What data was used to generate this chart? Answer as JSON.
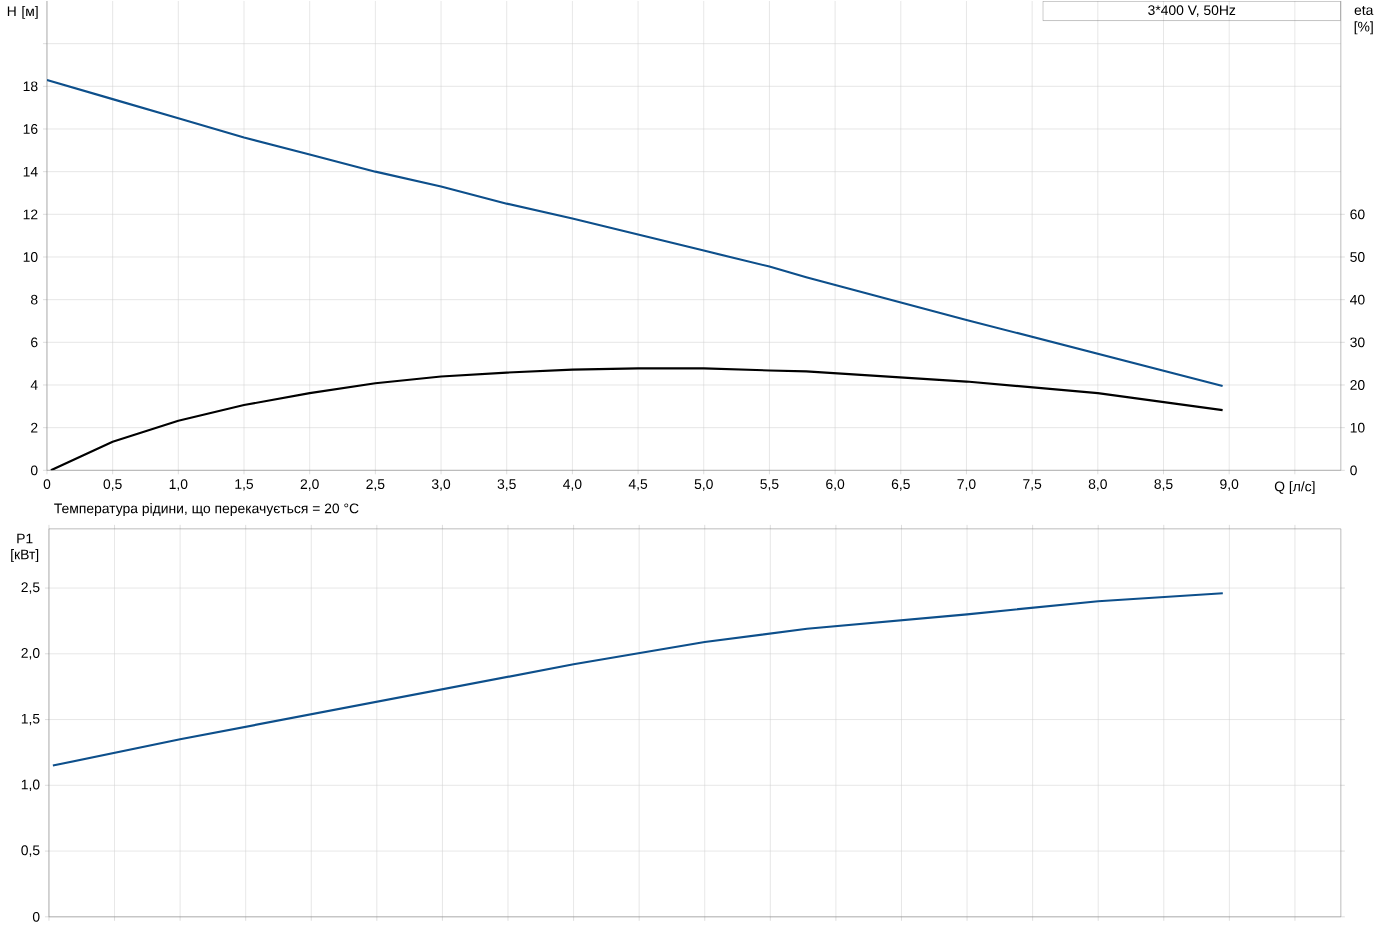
{
  "chart_data": [
    {
      "type": "line",
      "xlabel": "Q [л/с]",
      "ylabel": "H [м]",
      "y2label": "eta [%]",
      "annotations": [
        "3*400 V, 50Hz"
      ],
      "xlim": [
        0,
        9.85
      ],
      "xticks": [
        0,
        {
          "value": 0.5,
          "label": "0,5"
        },
        {
          "value": 1.0,
          "label": "1,0"
        },
        {
          "value": 1.5,
          "label": "1,5"
        },
        {
          "value": 2.0,
          "label": "2,0"
        },
        {
          "value": 2.5,
          "label": "2,5"
        },
        {
          "value": 3.0,
          "label": "3,0"
        },
        {
          "value": 3.5,
          "label": "3,5"
        },
        {
          "value": 4.0,
          "label": "4,0"
        },
        {
          "value": 4.5,
          "label": "4,5"
        },
        {
          "value": 5.0,
          "label": "5,0"
        },
        {
          "value": 5.5,
          "label": "5,5"
        },
        {
          "value": 6.0,
          "label": "6,0"
        },
        {
          "value": 6.5,
          "label": "6,5"
        },
        {
          "value": 7.0,
          "label": "7,0"
        },
        {
          "value": 7.5,
          "label": "7,5"
        },
        {
          "value": 8.0,
          "label": "8,0"
        },
        {
          "value": 8.5,
          "label": "8,5"
        },
        {
          "value": 9.0,
          "label": "9,0"
        },
        {
          "value": 9.5,
          "label": null
        }
      ],
      "ylim": [
        0,
        22
      ],
      "yticks": [
        0,
        2,
        4,
        6,
        8,
        10,
        12,
        14,
        16,
        18,
        {
          "value": 20,
          "label": null
        }
      ],
      "y2lim": [
        0,
        110
      ],
      "y2ticks": [
        0,
        10,
        20,
        30,
        40,
        50,
        60
      ],
      "grid": true,
      "marker": "none",
      "line_style": "solid",
      "series": [
        {
          "color": "#0d4f8b",
          "axis": "y",
          "x": [
            0,
            0.5,
            1.0,
            1.5,
            2.0,
            2.5,
            3.0,
            3.5,
            4.0,
            4.5,
            5.0,
            5.5,
            5.78,
            7.0,
            8.95
          ],
          "values": [
            18.3,
            17.4,
            16.5,
            15.6,
            14.8,
            14.0,
            13.3,
            12.5,
            11.8,
            11.05,
            10.3,
            9.55,
            9.05,
            7.05,
            3.95
          ]
        },
        {
          "color": "#000000",
          "axis": "y2",
          "x": [
            0.03,
            0.5,
            1.0,
            1.5,
            2.0,
            2.5,
            3.0,
            3.5,
            4.0,
            4.5,
            5.0,
            5.5,
            5.78,
            7.0,
            8.0,
            8.95
          ],
          "values": [
            0,
            6.7,
            11.6,
            15.3,
            18.1,
            20.4,
            22.0,
            22.9,
            23.6,
            23.9,
            23.9,
            23.4,
            23.2,
            20.8,
            18.1,
            14.1
          ]
        }
      ]
    },
    {
      "type": "line",
      "title": "Температура рідини, що перекачується = 20 °C",
      "ylabel": "P1 [кВт]",
      "xlim": [
        0,
        9.85
      ],
      "xticks": [
        0,
        0.5,
        1.0,
        1.5,
        2.0,
        2.5,
        3.0,
        3.5,
        4.0,
        4.5,
        5.0,
        5.5,
        6.0,
        6.5,
        7.0,
        7.5,
        8.0,
        8.5,
        9.0,
        9.5
      ],
      "ylim": [
        0,
        2.95
      ],
      "yticks": [
        0,
        {
          "value": 0.5,
          "label": "0,5"
        },
        {
          "value": 1.0,
          "label": "1,0"
        },
        {
          "value": 1.5,
          "label": "1,5"
        },
        {
          "value": 2.0,
          "label": "2,0"
        },
        {
          "value": 2.5,
          "label": "2,5"
        }
      ],
      "tick_labels": "y",
      "grid": true,
      "marker": "none",
      "line_style": "solid",
      "series": [
        {
          "color": "#0d4f8b",
          "x": [
            0.03,
            1.0,
            2.0,
            3.0,
            4.0,
            5.0,
            5.78,
            7.0,
            8.0,
            8.95
          ],
          "values": [
            1.15,
            1.35,
            1.54,
            1.73,
            1.92,
            2.09,
            2.19,
            2.3,
            2.4,
            2.46
          ]
        }
      ]
    }
  ]
}
